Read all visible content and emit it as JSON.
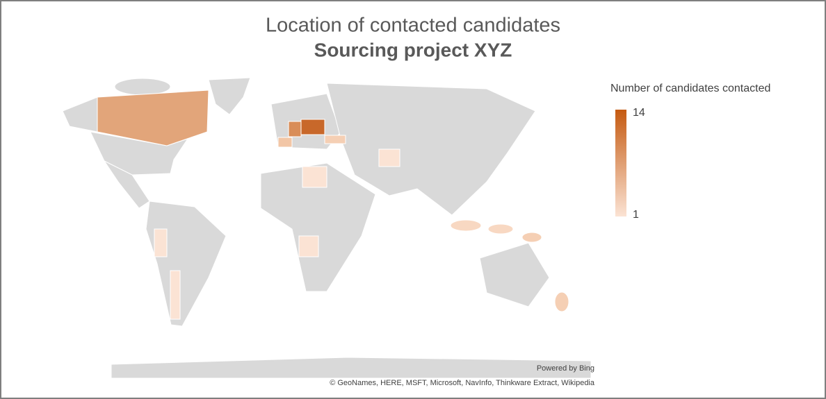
{
  "title": "Location of contacted candidates",
  "subtitle": "Sourcing project XYZ",
  "legend": {
    "title": "Number of candidates contacted",
    "ticks": [
      14,
      1
    ],
    "range": [
      1,
      14
    ],
    "colors": [
      "#fbe3d4",
      "#c55a11"
    ]
  },
  "attribution": {
    "provider": "Powered by Bing",
    "sources": "© GeoNames, HERE, MSFT, Microsoft, NavInfo, Thinkware Extract, Wikipedia"
  }
}
